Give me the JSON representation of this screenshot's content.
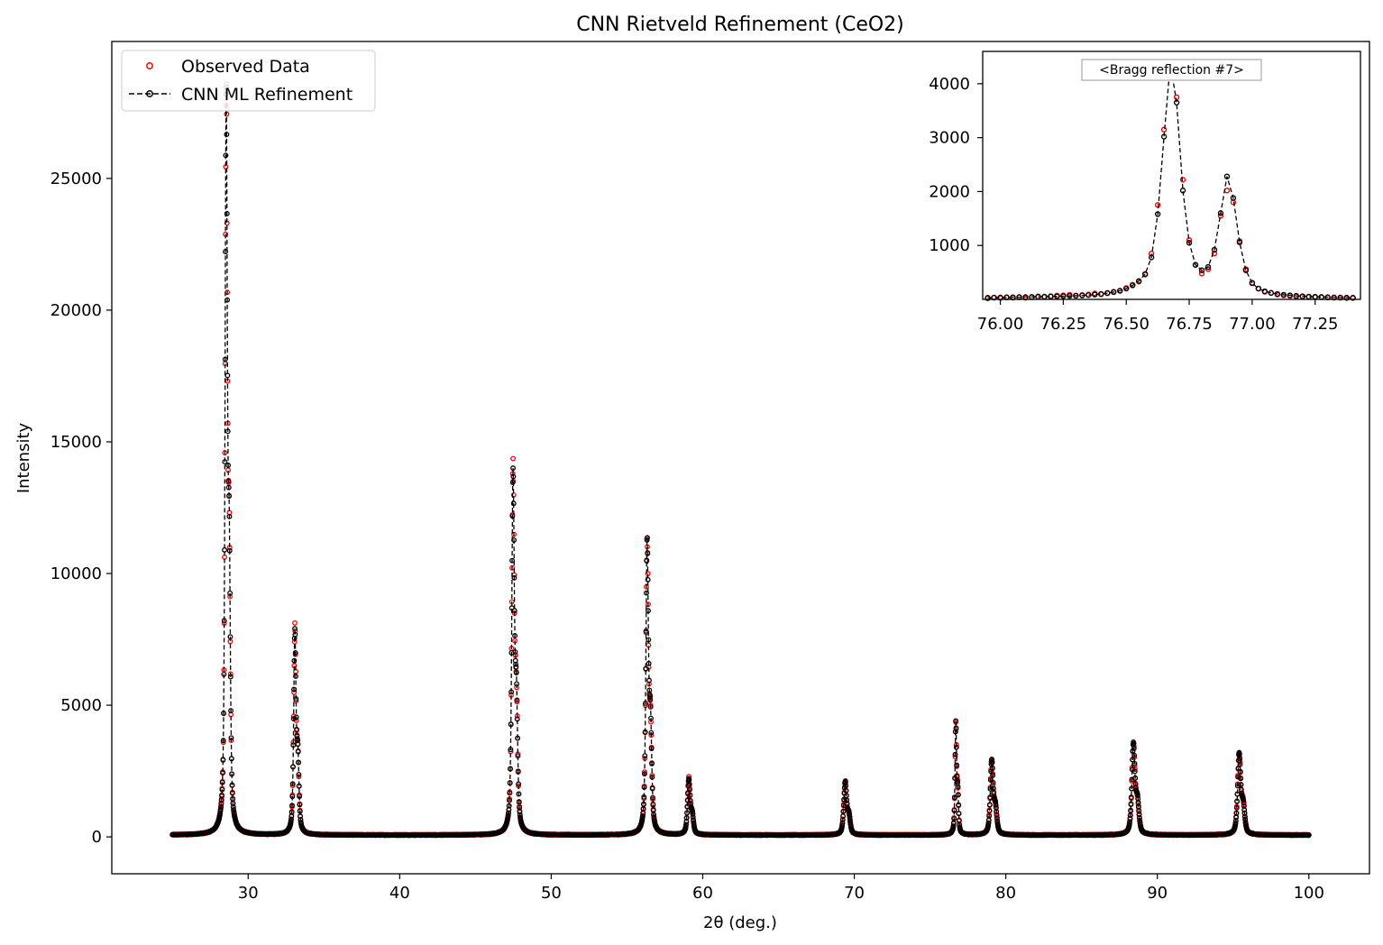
{
  "chart_data": [
    {
      "id": "main",
      "type": "scatter",
      "title": "CNN Rietveld Refinement (CeO2)",
      "xlabel": "2θ (deg.)",
      "ylabel": "Intensity",
      "xlim": [
        21,
        104
      ],
      "ylim": [
        -1400,
        30200
      ],
      "xticks": [
        30,
        40,
        50,
        60,
        70,
        80,
        90,
        100
      ],
      "yticks": [
        0,
        5000,
        10000,
        15000,
        20000,
        25000
      ],
      "x_range": [
        25,
        100
      ],
      "x_step": 0.02,
      "background": 70,
      "legend": {
        "placement": "top-left"
      },
      "grid": false,
      "peaks": [
        {
          "position": 28.55,
          "height": 28600,
          "width": 0.09
        },
        {
          "position": 33.08,
          "height": 7900,
          "width": 0.09
        },
        {
          "position": 47.48,
          "height": 14000,
          "width": 0.1
        },
        {
          "position": 56.33,
          "height": 11400,
          "width": 0.1
        },
        {
          "position": 59.08,
          "height": 2200,
          "width": 0.1
        },
        {
          "position": 69.4,
          "height": 2100,
          "width": 0.11
        },
        {
          "position": 76.7,
          "height": 4400,
          "width": 0.06
        },
        {
          "position": 79.07,
          "height": 2950,
          "width": 0.11
        },
        {
          "position": 88.42,
          "height": 3600,
          "width": 0.12
        },
        {
          "position": 95.4,
          "height": 3200,
          "width": 0.12
        }
      ],
      "series": [
        {
          "name": "Observed Data",
          "style": "open-circle",
          "color": "#ff0000"
        },
        {
          "name": "CNN ML Refinement",
          "style": "dashed-line-open-circle",
          "color": "#000000"
        }
      ]
    },
    {
      "id": "inset",
      "type": "scatter",
      "annotation": "<Bragg reflection #7>",
      "xlim": [
        75.93,
        77.43
      ],
      "ylim": [
        0,
        4600
      ],
      "xticks": [
        "76.00",
        "76.25",
        "76.50",
        "76.75",
        "77.00",
        "77.25"
      ],
      "yticks": [
        1000,
        2000,
        3000,
        4000
      ],
      "observed": {
        "x": [
          75.95,
          75.975,
          76.0,
          76.025,
          76.05,
          76.075,
          76.1,
          76.125,
          76.15,
          76.175,
          76.2,
          76.225,
          76.25,
          76.275,
          76.3,
          76.325,
          76.35,
          76.375,
          76.4,
          76.425,
          76.45,
          76.475,
          76.5,
          76.525,
          76.55,
          76.575,
          76.6,
          76.625,
          76.65,
          76.675,
          76.7,
          76.725,
          76.75,
          76.775,
          76.8,
          76.825,
          76.85,
          76.875,
          76.9,
          76.925,
          76.95,
          76.975,
          77.0,
          77.025,
          77.05,
          77.075,
          77.1,
          77.125,
          77.15,
          77.175,
          77.2,
          77.225,
          77.25,
          77.275,
          77.3,
          77.325,
          77.35,
          77.375,
          77.4
        ],
        "y": [
          20,
          35,
          25,
          40,
          30,
          45,
          30,
          40,
          55,
          45,
          60,
          70,
          75,
          85,
          70,
          80,
          90,
          110,
          95,
          120,
          140,
          160,
          210,
          270,
          330,
          460,
          850,
          1750,
          3150,
          4300,
          3750,
          2220,
          1100,
          640,
          480,
          560,
          850,
          1550,
          2020,
          1800,
          1080,
          560,
          310,
          200,
          140,
          120,
          90,
          75,
          65,
          55,
          50,
          45,
          40,
          40,
          35,
          30,
          30,
          25,
          25
        ]
      },
      "fit": {
        "x": [
          75.95,
          75.975,
          76.0,
          76.025,
          76.05,
          76.075,
          76.1,
          76.125,
          76.15,
          76.175,
          76.2,
          76.225,
          76.25,
          76.275,
          76.3,
          76.325,
          76.35,
          76.375,
          76.4,
          76.425,
          76.45,
          76.475,
          76.5,
          76.525,
          76.55,
          76.575,
          76.6,
          76.625,
          76.65,
          76.675,
          76.7,
          76.725,
          76.75,
          76.775,
          76.8,
          76.825,
          76.85,
          76.875,
          76.9,
          76.925,
          76.95,
          76.975,
          77.0,
          77.025,
          77.05,
          77.075,
          77.1,
          77.125,
          77.15,
          77.175,
          77.2,
          77.225,
          77.25,
          77.275,
          77.3,
          77.325,
          77.35,
          77.375,
          77.4
        ],
        "y": [
          30,
          32,
          34,
          36,
          38,
          40,
          42,
          45,
          48,
          50,
          53,
          56,
          60,
          64,
          68,
          74,
          80,
          90,
          100,
          115,
          135,
          160,
          200,
          260,
          340,
          470,
          780,
          1580,
          3020,
          4380,
          3650,
          2020,
          1050,
          640,
          540,
          600,
          920,
          1600,
          2280,
          1880,
          1060,
          540,
          300,
          200,
          150,
          120,
          100,
          85,
          75,
          65,
          58,
          52,
          48,
          44,
          40,
          36,
          34,
          32,
          30
        ]
      }
    }
  ]
}
